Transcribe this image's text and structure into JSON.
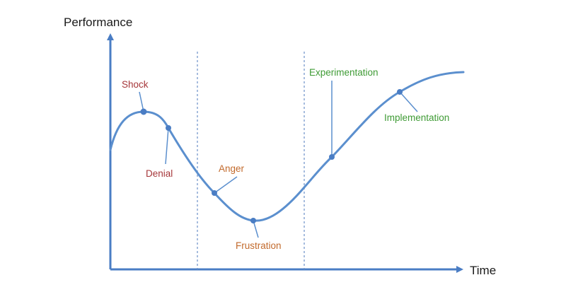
{
  "axes": {
    "y_label": "Performance",
    "x_label": "Time"
  },
  "stages": [
    {
      "label": "Shock",
      "color": "#a6373a"
    },
    {
      "label": "Denial",
      "color": "#a6373a"
    },
    {
      "label": "Anger",
      "color": "#c26a2c"
    },
    {
      "label": "Frustration",
      "color": "#c26a2c"
    },
    {
      "label": "Experimentation",
      "color": "#3f9b35"
    },
    {
      "label": "Implementation",
      "color": "#3f9b35"
    }
  ],
  "colors": {
    "curve": "#5b8fce",
    "axis": "#4a7dc4",
    "divider": "#6b8fc7",
    "point": "#4a7dc4"
  }
}
